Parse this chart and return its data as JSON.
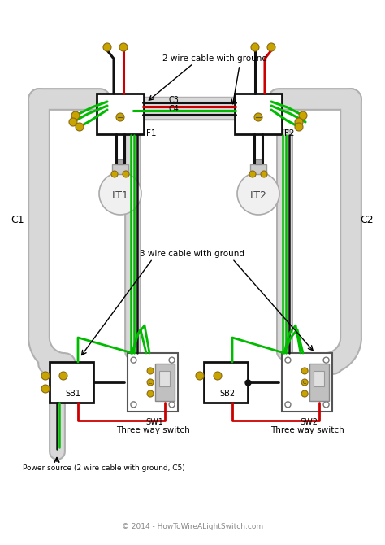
{
  "bg_color": "#ffffff",
  "wire_black": "#111111",
  "wire_red": "#cc0000",
  "wire_green": "#00bb00",
  "conduit_color": "#d8d8d8",
  "conduit_edge": "#b0b0b0",
  "box_color": "#ffffff",
  "box_edge": "#222222",
  "gold_color": "#c8a400",
  "gold_edge": "#8b6914",
  "title": "© 2014 - HowToWireALightSwitch.com",
  "label_2wire": "2 wire cable with ground",
  "label_3wire": "3 wire cable with ground",
  "label_power": "Power source (2 wire cable with ground, C5)",
  "label_sw1": "Three way switch",
  "label_sw2": "Three way switch",
  "label_lt1": "LT1",
  "label_lt2": "LT2",
  "label_f1": "F1",
  "label_f2": "F2",
  "label_sb1": "SB1",
  "label_sb2": "SB2",
  "label_sw1t": "SW1",
  "label_sw2t": "SW2",
  "label_c1": "C1",
  "label_c2": "C2",
  "label_c3": "C3",
  "label_c4": "C4"
}
